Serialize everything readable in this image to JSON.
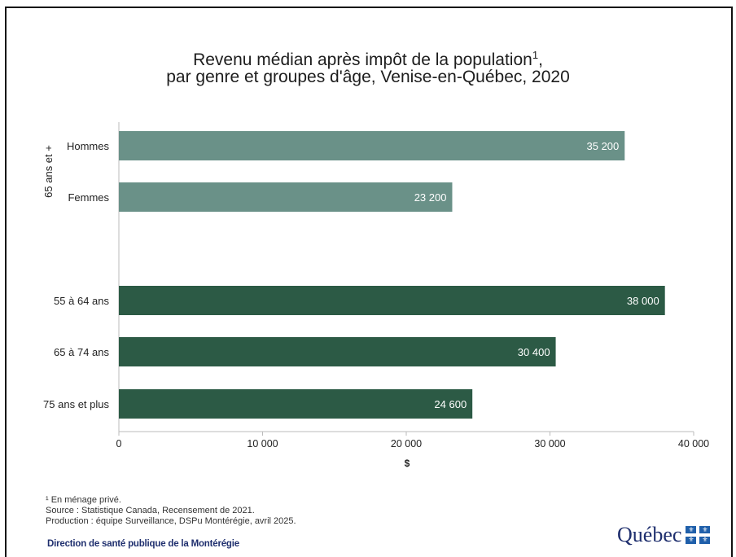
{
  "title": {
    "line1": "Revenu médian après impôt de la population",
    "sup": "1",
    "line1_end": ",",
    "line2": "par genre et groupes d'âge, Venise-en-Québec, 2020"
  },
  "chart_data": {
    "type": "bar",
    "orientation": "horizontal",
    "group_label": "65 ans et +",
    "categories": [
      "Hommes",
      "Femmes",
      "55 à 64 ans",
      "65 à 74 ans",
      "75 ans et plus"
    ],
    "values": [
      35200,
      23200,
      38000,
      30400,
      24600
    ],
    "value_labels": [
      "35 200",
      "23 200",
      "38 000",
      "30 400",
      "24 600"
    ],
    "colors": [
      "#6a9188",
      "#6a9188",
      "#2c5a45",
      "#2c5a45",
      "#2c5a45"
    ],
    "xlabel": "$",
    "xlim": [
      0,
      40000
    ],
    "xticks": [
      0,
      10000,
      20000,
      30000,
      40000
    ],
    "xtick_labels": [
      "0",
      "10 000",
      "20 000",
      "30 000",
      "40 000"
    ],
    "grid": false
  },
  "footnotes": {
    "note1": "¹ En ménage privé.",
    "source": "Source : Statistique Canada, Recensement de 2021.",
    "production": "Production : équipe Surveillance, DSPu Montérégie, avril 2025."
  },
  "branding": {
    "direction": "Direction de santé publique de la Montérégie",
    "logo_word": "Québec",
    "logo_icon": "quebec-flag-icon"
  }
}
